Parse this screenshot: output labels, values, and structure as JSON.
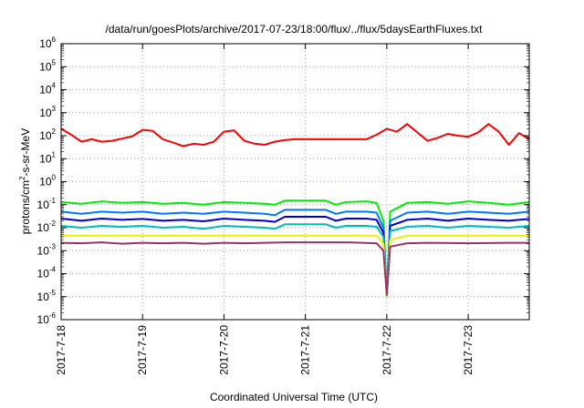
{
  "chart_data": {
    "type": "line",
    "title": "/data/run/goesPlots/archive/2017-07-23/18:00/flux/../flux/5daysEarthFluxes.txt",
    "xlabel": "Coordinated Universal Time (UTC)",
    "ylabel": {
      "prefix": "protons/cm",
      "superscript": "2",
      "suffix": "-s-sr-MeV"
    },
    "x_scale": "time",
    "y_scale": "log",
    "xlim": [
      "2017-07-18",
      "2017-07-23 18:00"
    ],
    "x_ticks": [
      "2017-7-18",
      "2017-7-19",
      "2017-7-20",
      "2017-7-21",
      "2017-7-22",
      "2017-7-23"
    ],
    "y_ticks": [
      {
        "base": "10",
        "exp": "-6"
      },
      {
        "base": "10",
        "exp": "-5"
      },
      {
        "base": "10",
        "exp": "-4"
      },
      {
        "base": "10",
        "exp": "-3"
      },
      {
        "base": "10",
        "exp": "-2"
      },
      {
        "base": "10",
        "exp": "-1"
      },
      {
        "base": "10",
        "exp": "0"
      },
      {
        "base": "10",
        "exp": "1"
      },
      {
        "base": "10",
        "exp": "2"
      },
      {
        "base": "10",
        "exp": "3"
      },
      {
        "base": "10",
        "exp": "4"
      },
      {
        "base": "10",
        "exp": "5"
      },
      {
        "base": "10",
        "exp": "6"
      }
    ],
    "ylim": [
      1e-06,
      1000000.0
    ],
    "grid": true,
    "series": [
      {
        "color": "#ff0000",
        "x": [
          "2017-07-18 00:00",
          "2017-07-18 03:00",
          "2017-07-18 06:00",
          "2017-07-18 09:00",
          "2017-07-18 12:00",
          "2017-07-18 15:00",
          "2017-07-18 18:00",
          "2017-07-18 21:00",
          "2017-07-19 00:00",
          "2017-07-19 03:00",
          "2017-07-19 06:00",
          "2017-07-19 09:00",
          "2017-07-19 12:00",
          "2017-07-19 15:00",
          "2017-07-19 18:00",
          "2017-07-19 21:00",
          "2017-07-20 00:00",
          "2017-07-20 03:00",
          "2017-07-20 06:00",
          "2017-07-20 09:00",
          "2017-07-20 12:00",
          "2017-07-20 15:00",
          "2017-07-20 18:00",
          "2017-07-20 21:00",
          "2017-07-21 00:00",
          "2017-07-21 03:00",
          "2017-07-21 06:00",
          "2017-07-21 09:00",
          "2017-07-21 12:00",
          "2017-07-21 15:00",
          "2017-07-21 18:00",
          "2017-07-21 21:00",
          "2017-07-22 00:00",
          "2017-07-22 03:00",
          "2017-07-22 06:00",
          "2017-07-22 09:00",
          "2017-07-22 12:00",
          "2017-07-22 15:00",
          "2017-07-22 18:00",
          "2017-07-22 21:00",
          "2017-07-23 00:00",
          "2017-07-23 03:00",
          "2017-07-23 06:00",
          "2017-07-23 09:00",
          "2017-07-23 12:00",
          "2017-07-23 15:00",
          "2017-07-23 18:00"
        ],
        "values": [
          200,
          110,
          55,
          70,
          55,
          60,
          75,
          95,
          180,
          160,
          70,
          50,
          35,
          45,
          40,
          55,
          150,
          170,
          60,
          45,
          40,
          55,
          65,
          70,
          70,
          70,
          70,
          70,
          70,
          70,
          70,
          110,
          200,
          150,
          320,
          140,
          60,
          80,
          120,
          100,
          90,
          140,
          320,
          150,
          40,
          130,
          70
        ]
      },
      {
        "color": "#00ee00",
        "x": [
          "2017-07-18 00:00",
          "2017-07-18 06:00",
          "2017-07-18 12:00",
          "2017-07-18 18:00",
          "2017-07-19 00:00",
          "2017-07-19 06:00",
          "2017-07-19 12:00",
          "2017-07-19 18:00",
          "2017-07-20 00:00",
          "2017-07-20 06:00",
          "2017-07-20 12:00",
          "2017-07-20 15:00",
          "2017-07-20 18:00",
          "2017-07-21 00:00",
          "2017-07-21 06:00",
          "2017-07-21 09:00",
          "2017-07-21 12:00",
          "2017-07-21 18:00",
          "2017-07-21 21:00",
          "2017-07-21 23:00",
          "2017-07-22 00:00",
          "2017-07-22 01:00",
          "2017-07-22 06:00",
          "2017-07-22 12:00",
          "2017-07-22 18:00",
          "2017-07-23 00:00",
          "2017-07-23 06:00",
          "2017-07-23 12:00",
          "2017-07-23 18:00"
        ],
        "values": [
          0.13,
          0.11,
          0.14,
          0.12,
          0.13,
          0.11,
          0.12,
          0.1,
          0.13,
          0.12,
          0.11,
          0.1,
          0.15,
          0.15,
          0.15,
          0.1,
          0.13,
          0.14,
          0.12,
          0.02,
          1e-05,
          0.05,
          0.12,
          0.13,
          0.11,
          0.14,
          0.12,
          0.1,
          0.13
        ]
      },
      {
        "color": "#0077ff",
        "x": [
          "2017-07-18 00:00",
          "2017-07-18 06:00",
          "2017-07-18 12:00",
          "2017-07-18 18:00",
          "2017-07-19 00:00",
          "2017-07-19 06:00",
          "2017-07-19 12:00",
          "2017-07-19 18:00",
          "2017-07-20 00:00",
          "2017-07-20 06:00",
          "2017-07-20 12:00",
          "2017-07-20 15:00",
          "2017-07-20 18:00",
          "2017-07-21 00:00",
          "2017-07-21 06:00",
          "2017-07-21 09:00",
          "2017-07-21 12:00",
          "2017-07-21 18:00",
          "2017-07-21 21:00",
          "2017-07-21 23:00",
          "2017-07-22 00:00",
          "2017-07-22 01:00",
          "2017-07-22 06:00",
          "2017-07-22 12:00",
          "2017-07-22 18:00",
          "2017-07-23 00:00",
          "2017-07-23 06:00",
          "2017-07-23 12:00",
          "2017-07-23 18:00"
        ],
        "values": [
          0.05,
          0.04,
          0.05,
          0.045,
          0.05,
          0.04,
          0.045,
          0.04,
          0.05,
          0.045,
          0.04,
          0.035,
          0.06,
          0.06,
          0.06,
          0.04,
          0.05,
          0.05,
          0.045,
          0.01,
          1e-05,
          0.02,
          0.045,
          0.05,
          0.04,
          0.05,
          0.045,
          0.04,
          0.05
        ]
      },
      {
        "color": "#0000cc",
        "x": [
          "2017-07-18 00:00",
          "2017-07-18 06:00",
          "2017-07-18 12:00",
          "2017-07-18 18:00",
          "2017-07-19 00:00",
          "2017-07-19 06:00",
          "2017-07-19 12:00",
          "2017-07-19 18:00",
          "2017-07-20 00:00",
          "2017-07-20 06:00",
          "2017-07-20 12:00",
          "2017-07-20 15:00",
          "2017-07-20 18:00",
          "2017-07-21 00:00",
          "2017-07-21 06:00",
          "2017-07-21 09:00",
          "2017-07-21 12:00",
          "2017-07-21 18:00",
          "2017-07-21 21:00",
          "2017-07-21 23:00",
          "2017-07-22 00:00",
          "2017-07-22 01:00",
          "2017-07-22 06:00",
          "2017-07-22 12:00",
          "2017-07-22 18:00",
          "2017-07-23 00:00",
          "2017-07-23 06:00",
          "2017-07-23 12:00",
          "2017-07-23 18:00"
        ],
        "values": [
          0.025,
          0.02,
          0.025,
          0.022,
          0.024,
          0.02,
          0.022,
          0.019,
          0.025,
          0.022,
          0.02,
          0.018,
          0.03,
          0.03,
          0.03,
          0.02,
          0.025,
          0.025,
          0.022,
          0.006,
          1e-05,
          0.012,
          0.022,
          0.025,
          0.02,
          0.025,
          0.022,
          0.02,
          0.024
        ]
      },
      {
        "color": "#00bbbb",
        "x": [
          "2017-07-18 00:00",
          "2017-07-18 06:00",
          "2017-07-18 12:00",
          "2017-07-18 18:00",
          "2017-07-19 00:00",
          "2017-07-19 06:00",
          "2017-07-19 12:00",
          "2017-07-19 18:00",
          "2017-07-20 00:00",
          "2017-07-20 06:00",
          "2017-07-20 12:00",
          "2017-07-20 15:00",
          "2017-07-20 18:00",
          "2017-07-21 00:00",
          "2017-07-21 06:00",
          "2017-07-21 09:00",
          "2017-07-21 12:00",
          "2017-07-21 18:00",
          "2017-07-21 21:00",
          "2017-07-21 23:00",
          "2017-07-22 00:00",
          "2017-07-22 01:00",
          "2017-07-22 06:00",
          "2017-07-22 12:00",
          "2017-07-22 18:00",
          "2017-07-23 00:00",
          "2017-07-23 06:00",
          "2017-07-23 12:00",
          "2017-07-23 18:00"
        ],
        "values": [
          0.012,
          0.01,
          0.012,
          0.011,
          0.012,
          0.01,
          0.011,
          0.009,
          0.012,
          0.011,
          0.01,
          0.009,
          0.014,
          0.014,
          0.014,
          0.01,
          0.012,
          0.012,
          0.011,
          0.004,
          1e-05,
          0.007,
          0.011,
          0.012,
          0.01,
          0.012,
          0.011,
          0.01,
          0.012
        ]
      },
      {
        "color": "#eeee00",
        "x": [
          "2017-07-18 00:00",
          "2017-07-18 12:00",
          "2017-07-19 00:00",
          "2017-07-19 12:00",
          "2017-07-20 00:00",
          "2017-07-20 12:00",
          "2017-07-21 00:00",
          "2017-07-21 12:00",
          "2017-07-21 21:00",
          "2017-07-21 23:00",
          "2017-07-22 00:00",
          "2017-07-22 01:00",
          "2017-07-22 06:00",
          "2017-07-22 12:00",
          "2017-07-23 00:00",
          "2017-07-23 12:00",
          "2017-07-23 18:00"
        ],
        "values": [
          0.0045,
          0.0045,
          0.0045,
          0.0045,
          0.0045,
          0.0045,
          0.0045,
          0.0045,
          0.0045,
          0.002,
          1e-05,
          0.003,
          0.0045,
          0.0045,
          0.0045,
          0.0045,
          0.0045
        ]
      },
      {
        "color": "#993366",
        "x": [
          "2017-07-18 00:00",
          "2017-07-18 06:00",
          "2017-07-18 12:00",
          "2017-07-18 18:00",
          "2017-07-19 00:00",
          "2017-07-19 06:00",
          "2017-07-19 12:00",
          "2017-07-19 18:00",
          "2017-07-20 00:00",
          "2017-07-20 06:00",
          "2017-07-20 12:00",
          "2017-07-20 18:00",
          "2017-07-21 00:00",
          "2017-07-21 12:00",
          "2017-07-21 21:00",
          "2017-07-21 23:00",
          "2017-07-22 00:00",
          "2017-07-22 01:00",
          "2017-07-22 06:00",
          "2017-07-22 12:00",
          "2017-07-23 00:00",
          "2017-07-23 12:00",
          "2017-07-23 18:00"
        ],
        "values": [
          0.0022,
          0.0021,
          0.0023,
          0.002,
          0.0022,
          0.0021,
          0.0022,
          0.002,
          0.0022,
          0.0021,
          0.0022,
          0.0023,
          0.0023,
          0.0023,
          0.0021,
          0.001,
          1.2e-05,
          0.0015,
          0.0021,
          0.0022,
          0.0021,
          0.0022,
          0.0022
        ]
      }
    ]
  }
}
